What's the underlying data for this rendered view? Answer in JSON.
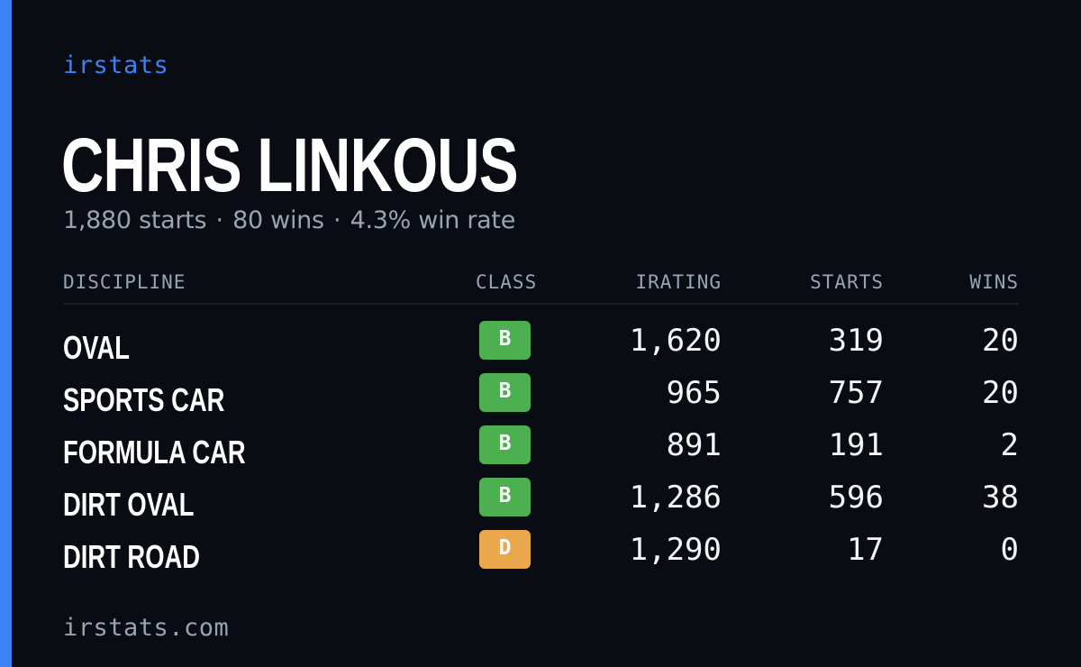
{
  "brand": "irstats",
  "driver": {
    "name": "CHRIS LINKOUS",
    "starts_text": "1,880 starts",
    "wins_text": "80 wins",
    "win_rate_text": "4.3% win rate",
    "separator": "·"
  },
  "table": {
    "headers": {
      "discipline": "DISCIPLINE",
      "class": "CLASS",
      "irating": "IRATING",
      "starts": "STARTS",
      "wins": "WINS"
    },
    "rows": [
      {
        "discipline": "OVAL",
        "class": "B",
        "class_color": "#4caf50",
        "irating": "1,620",
        "starts": "319",
        "wins": "20"
      },
      {
        "discipline": "SPORTS CAR",
        "class": "B",
        "class_color": "#4caf50",
        "irating": "965",
        "starts": "757",
        "wins": "20"
      },
      {
        "discipline": "FORMULA CAR",
        "class": "B",
        "class_color": "#4caf50",
        "irating": "891",
        "starts": "191",
        "wins": "2"
      },
      {
        "discipline": "DIRT OVAL",
        "class": "B",
        "class_color": "#4caf50",
        "irating": "1,286",
        "starts": "596",
        "wins": "38"
      },
      {
        "discipline": "DIRT ROAD",
        "class": "D",
        "class_color": "#e9a84c",
        "irating": "1,290",
        "starts": "17",
        "wins": "0"
      }
    ]
  },
  "footer": "irstats.com",
  "colors": {
    "accent": "#3b82f6",
    "background": "#0a0c13",
    "muted_text": "#9aa3b2"
  }
}
